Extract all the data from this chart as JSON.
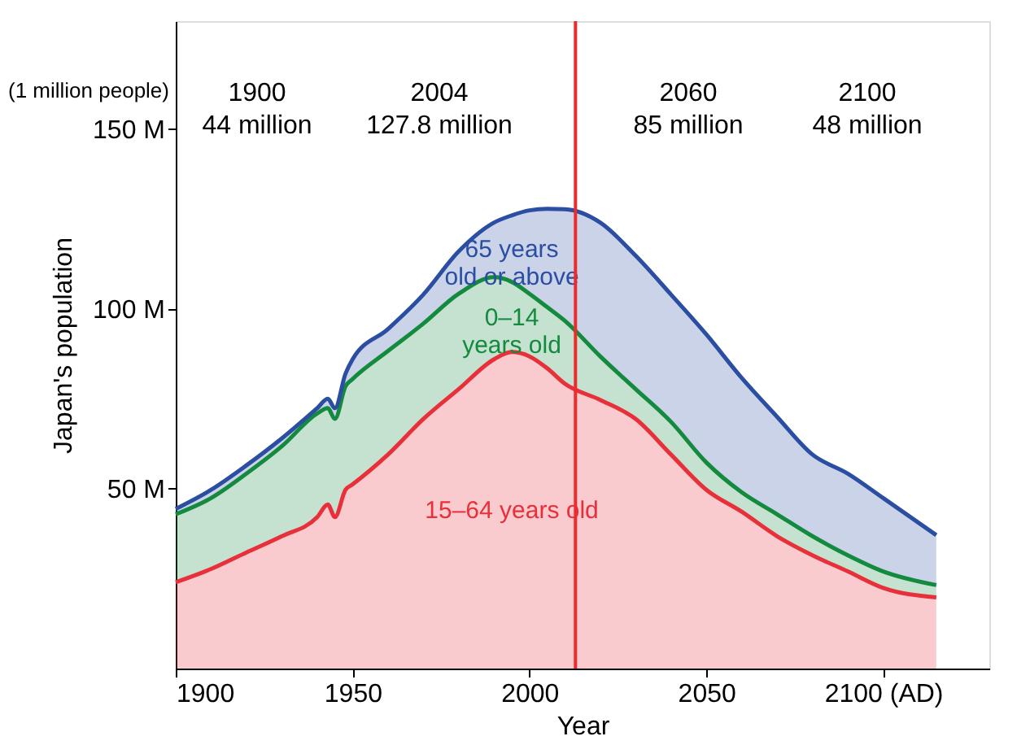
{
  "chart_data": {
    "type": "area",
    "stacked": true,
    "xlabel": "Year",
    "ylabel": "Japan's population",
    "x": [
      1900,
      1910,
      1920,
      1930,
      1940,
      1943,
      1945,
      1948,
      1950,
      1960,
      1970,
      1980,
      1990,
      1995,
      2000,
      2005,
      2010,
      2020,
      2030,
      2040,
      2050,
      2060,
      2070,
      2080,
      2090,
      2100,
      2115
    ],
    "series": [
      {
        "name": "15–64 years old",
        "color": "#e8303a",
        "values": [
          24.0,
          27.7,
          32.3,
          36.8,
          42.1,
          45.6,
          42.1,
          49.7,
          51.2,
          59.5,
          69.4,
          77.7,
          86.0,
          88.0,
          86.8,
          83.5,
          79.2,
          74.7,
          69.4,
          59.5,
          49.7,
          43.6,
          36.8,
          31.5,
          27.0,
          22.4,
          19.8
        ]
      },
      {
        "name": "0–14\nyears old",
        "color": "#138a3e",
        "values": [
          18.9,
          19.7,
          21.9,
          25.0,
          28.8,
          26.8,
          27.3,
          28.8,
          29.3,
          28.8,
          26.5,
          26.5,
          22.8,
          19.5,
          17.4,
          17.0,
          17.5,
          12.1,
          8.3,
          9.1,
          7.6,
          5.4,
          6.1,
          5.3,
          4.5,
          4.6,
          3.4
        ]
      },
      {
        "name": "65 years\nold or above",
        "color": "#2b4ea2",
        "values": [
          1.5,
          2.3,
          2.3,
          2.2,
          1.5,
          2.6,
          3.0,
          3.5,
          5.5,
          6.1,
          8.1,
          11.8,
          15.2,
          18.5,
          23.2,
          27.3,
          31.0,
          37.2,
          37.1,
          35.4,
          35.6,
          31.8,
          27.1,
          22.7,
          22.7,
          20.4,
          13.9
        ]
      }
    ],
    "xlim": [
      1900,
      2130
    ],
    "xticks": [
      1950,
      2000,
      2050,
      {
        "value": 1900,
        "label": "1900"
      },
      {
        "value": 2100,
        "label": "2100 (AD)"
      }
    ],
    "ylim": [
      0,
      180
    ],
    "yticks": [
      {
        "value": 50,
        "label": "50 M"
      },
      {
        "value": 100,
        "label": "100 M"
      },
      {
        "value": 150,
        "label": "150 M"
      }
    ],
    "ref_lines": [
      {
        "axis": "x",
        "value": 2013,
        "color": "#ee2a2a"
      }
    ],
    "annotations": [
      "(1 million people)",
      "1900\n44 million",
      "2004\n127.8 million",
      "2060\n85 million",
      "2100\n48 million"
    ],
    "grid": false,
    "legend": false
  }
}
